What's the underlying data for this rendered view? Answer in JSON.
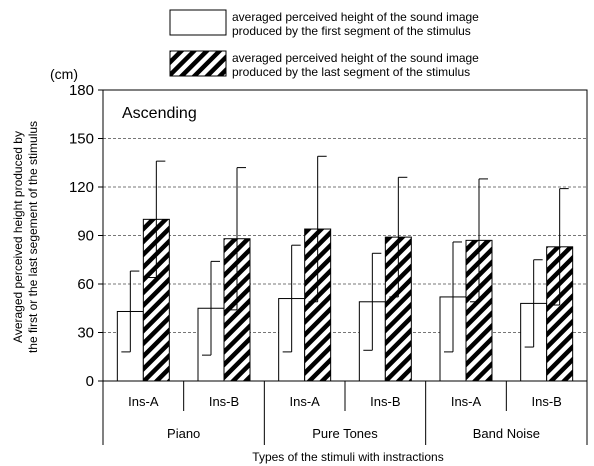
{
  "chart_data": {
    "type": "bar",
    "title": "Ascending",
    "y_unit": "(cm)",
    "ylabel_lines": [
      "Averaged perceived height produced by",
      "the first or the last segement of the stimulus"
    ],
    "xlabel": "Types of the stimuli with instractions",
    "ylim": [
      0,
      180
    ],
    "yticks": [
      0,
      30,
      60,
      90,
      120,
      150,
      180
    ],
    "grid": "horizontal dashed",
    "legend_position": "top",
    "categories": [
      "Ins-A",
      "Ins-B",
      "Ins-A",
      "Ins-B",
      "Ins-A",
      "Ins-B"
    ],
    "groups": [
      "Piano",
      "Pure Tones",
      "Band Noise"
    ],
    "series": [
      {
        "name_lines": [
          "averaged perceived height of the sound image",
          "produced by the first segment of the stimulus"
        ],
        "fill": "white",
        "values": [
          43,
          45,
          51,
          49,
          52,
          48
        ],
        "error_upper": [
          68,
          74,
          84,
          79,
          86,
          75
        ]
      },
      {
        "name_lines": [
          "averaged perceived height of the sound image",
          "produced by the last segment of the stimulus"
        ],
        "fill": "hatched",
        "values": [
          100,
          88,
          94,
          89,
          87,
          83
        ],
        "error_upper": [
          136,
          132,
          139,
          126,
          125,
          119
        ]
      }
    ]
  }
}
